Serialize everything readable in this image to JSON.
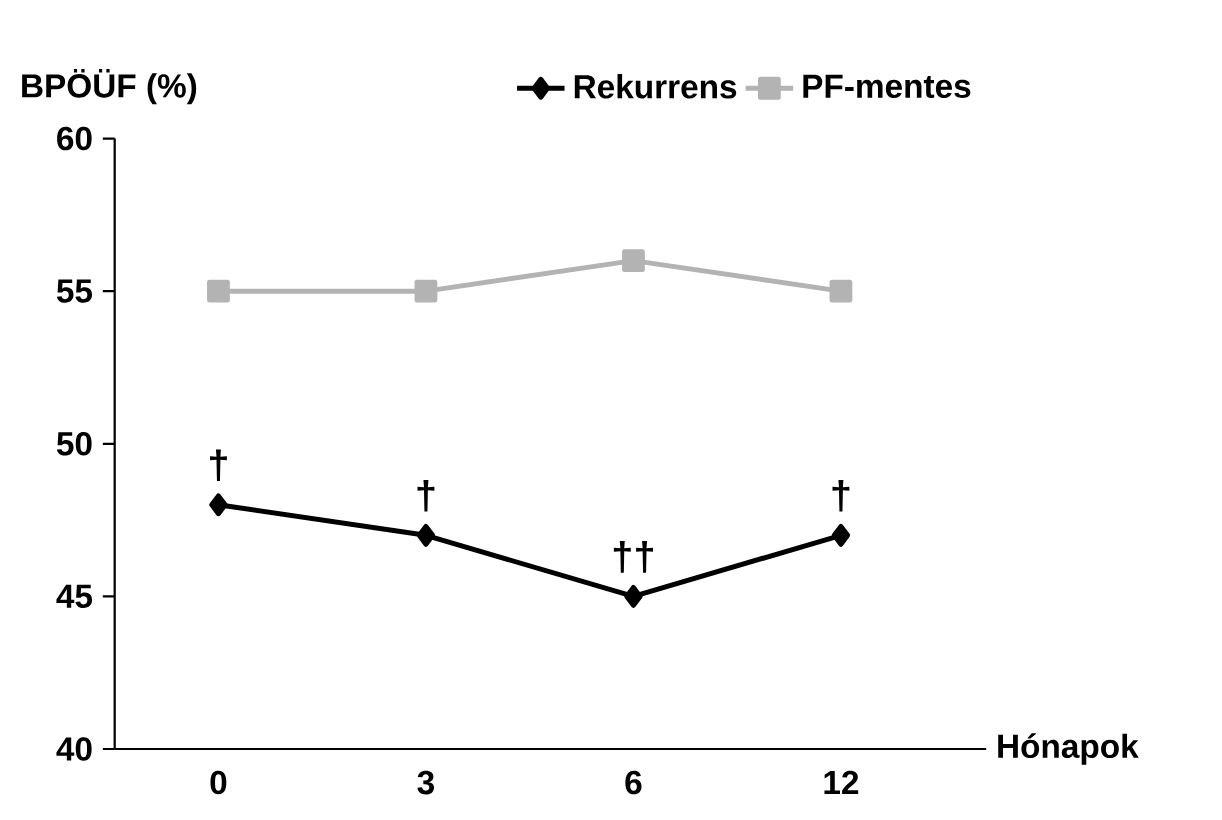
{
  "chart_data": {
    "type": "line",
    "ylabel": "BPÖÜF (%)",
    "xlabel": "Hónapok",
    "categories": [
      "0",
      "3",
      "6",
      "12"
    ],
    "series": [
      {
        "name": "Rekurrens",
        "color": "#000000",
        "marker": "diamond",
        "values": [
          48,
          47,
          45,
          47
        ]
      },
      {
        "name": "PF-mentes",
        "color": "#b3b3b3",
        "marker": "square",
        "values": [
          55,
          55,
          56,
          55
        ]
      }
    ],
    "ylim": [
      40,
      60
    ],
    "yticks": [
      40,
      45,
      50,
      55,
      60
    ],
    "grid": false,
    "legend": "top right",
    "line_style": "solid",
    "annotations": [
      {
        "text": "†",
        "x": "0",
        "y": 48
      },
      {
        "text": "†",
        "x": "3",
        "y": 47
      },
      {
        "text": "††",
        "x": "6",
        "y": 45
      },
      {
        "text": "†",
        "x": "12",
        "y": 47
      }
    ]
  }
}
